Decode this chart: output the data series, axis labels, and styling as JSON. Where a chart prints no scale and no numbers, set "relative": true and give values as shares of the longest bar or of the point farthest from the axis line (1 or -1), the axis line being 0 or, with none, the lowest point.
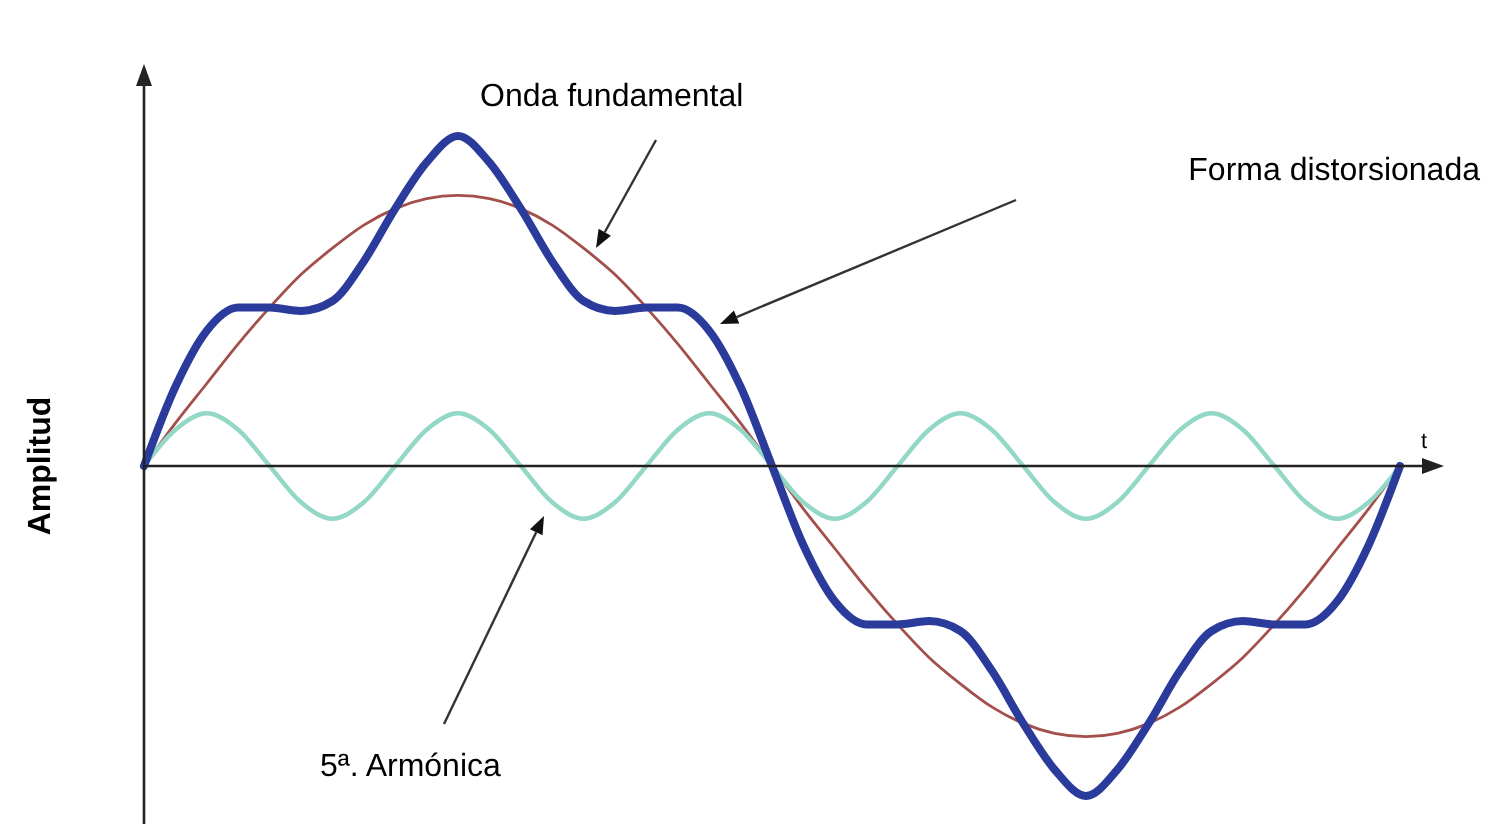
{
  "chart_data": {
    "type": "line",
    "relative": true,
    "xlabel": "t",
    "ylabel": "Amplitud",
    "categories": [
      null,
      null,
      null,
      null,
      null,
      null,
      null,
      null,
      null,
      null,
      null,
      null,
      null,
      null,
      null,
      null,
      null,
      null,
      null,
      null,
      null,
      null,
      null,
      null,
      null,
      null,
      null,
      null,
      null,
      null,
      null,
      null,
      null,
      null,
      null,
      null,
      null,
      null,
      null,
      null,
      null
    ],
    "series": [
      {
        "color": "#a3504c",
        "values": [
          0,
          0.13,
          0.25,
          0.37,
          0.48,
          0.58,
          0.66,
          0.73,
          0.78,
          0.81,
          0.82,
          0.81,
          0.78,
          0.73,
          0.66,
          0.58,
          0.48,
          0.37,
          0.25,
          0.13,
          0,
          -0.13,
          -0.25,
          -0.37,
          -0.48,
          -0.58,
          -0.66,
          -0.73,
          -0.78,
          -0.81,
          -0.82,
          -0.81,
          -0.78,
          -0.73,
          -0.66,
          -0.58,
          -0.48,
          -0.37,
          -0.25,
          -0.13,
          0
        ]
      },
      {
        "color": "#93d8c6",
        "values": [
          0,
          0.11,
          0.16,
          0.11,
          0,
          -0.11,
          -0.16,
          -0.11,
          0,
          0.11,
          0.16,
          0.11,
          0,
          -0.11,
          -0.16,
          -0.11,
          0,
          0.11,
          0.16,
          0.11,
          0,
          -0.11,
          -0.16,
          -0.11,
          0,
          0.11,
          0.16,
          0.11,
          0,
          -0.11,
          -0.16,
          -0.11,
          0,
          0.11,
          0.16,
          0.11,
          0,
          -0.11,
          -0.16,
          -0.11,
          0
        ]
      },
      {
        "color": "#2b3b9c",
        "values": [
          0,
          0.24,
          0.41,
          0.48,
          0.48,
          0.47,
          0.5,
          0.62,
          0.78,
          0.92,
          1,
          0.92,
          0.78,
          0.62,
          0.5,
          0.47,
          0.48,
          0.48,
          0.41,
          0.24,
          0,
          -0.24,
          -0.41,
          -0.48,
          -0.48,
          -0.47,
          -0.5,
          -0.62,
          -0.78,
          -0.92,
          -1,
          -0.92,
          -0.78,
          -0.62,
          -0.5,
          -0.47,
          -0.48,
          -0.48,
          -0.41,
          -0.24,
          0
        ]
      }
    ],
    "annotations": [
      "Onda fundamental",
      "Forma distorsionada",
      "5ª. Armónica"
    ]
  }
}
